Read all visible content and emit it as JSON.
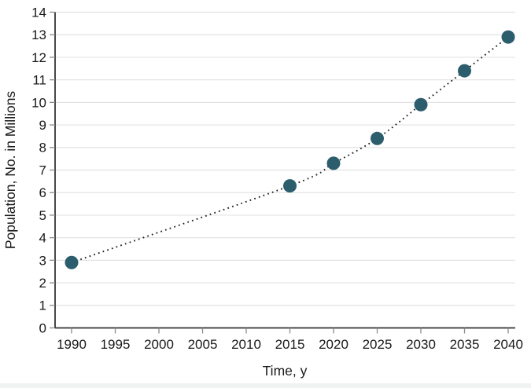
{
  "chart_data": {
    "type": "scatter",
    "title": "",
    "xlabel": "Time, y",
    "ylabel": "Population, No. in Millions",
    "x": [
      1990,
      2015,
      2020,
      2025,
      2030,
      2035,
      2040
    ],
    "y": [
      2.9,
      6.3,
      7.3,
      8.4,
      9.9,
      11.4,
      12.9
    ],
    "x_ticks": [
      "1990",
      "1995",
      "2000",
      "2005",
      "2010",
      "2015",
      "2020",
      "2025",
      "2030",
      "2035",
      "2040"
    ],
    "y_ticks": [
      "0",
      "1",
      "2",
      "3",
      "4",
      "5",
      "6",
      "7",
      "8",
      "9",
      "10",
      "11",
      "12",
      "13",
      "14"
    ],
    "xlim": [
      1990,
      2040
    ],
    "ylim": [
      0,
      14
    ],
    "grid": "horizontal",
    "line_style": "dotted",
    "legend_position": "none",
    "colors": {
      "marker": "#2c5d6d",
      "line": "#1c1c1c",
      "grid": "#e3e3e3",
      "axis": "#333333",
      "tick": "#8c8c8c",
      "text": "#1a1a1a",
      "background": "#ffffff",
      "bottom_strip": "#f0f3f2"
    }
  }
}
